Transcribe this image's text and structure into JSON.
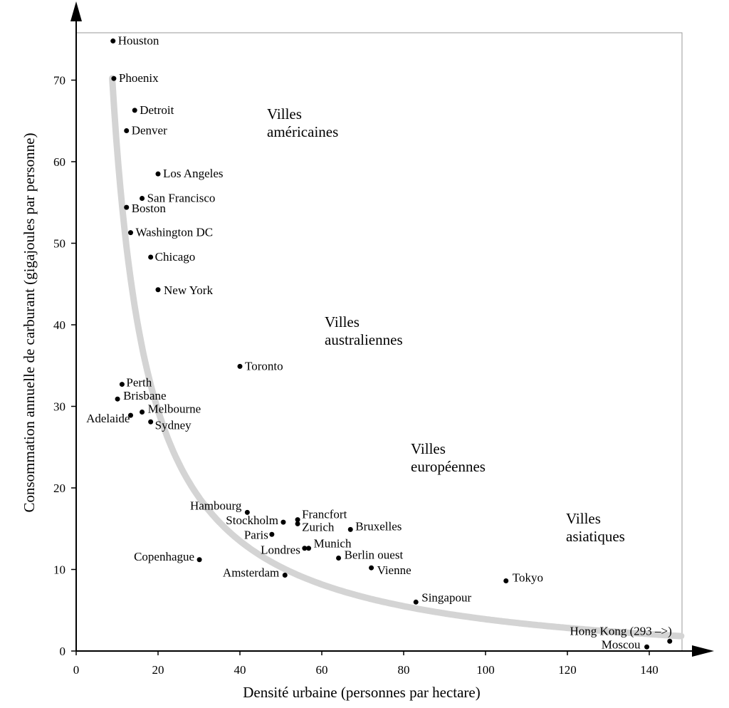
{
  "chart_data": {
    "type": "scatter",
    "title": "",
    "xlabel": "Densité urbaine (personnes par hectare)",
    "ylabel": "Consommation annuelle de carburant (gigajoules  par personne)",
    "xlim": [
      0,
      148
    ],
    "ylim": [
      0,
      76
    ],
    "xticks": [
      0,
      20,
      40,
      60,
      80,
      100,
      120,
      140
    ],
    "yticks": [
      0,
      10,
      20,
      30,
      40,
      50,
      60,
      70
    ],
    "grid": false,
    "curve_color": "#d4d4d4",
    "point_color": "#000000",
    "points": [
      {
        "name": "Houston",
        "x": 9,
        "y": 74.8
      },
      {
        "name": "Phoenix",
        "x": 9.2,
        "y": 70.2
      },
      {
        "name": "Detroit",
        "x": 14.3,
        "y": 66.3
      },
      {
        "name": "Denver",
        "x": 12.3,
        "y": 63.8
      },
      {
        "name": "Los Angeles",
        "x": 20,
        "y": 58.5
      },
      {
        "name": "San Francisco",
        "x": 16.1,
        "y": 55.5
      },
      {
        "name": "Boston",
        "x": 12.3,
        "y": 54.4
      },
      {
        "name": "Washington DC",
        "x": 13.3,
        "y": 51.3
      },
      {
        "name": "Chicago",
        "x": 18.2,
        "y": 48.3
      },
      {
        "name": "New York",
        "x": 20,
        "y": 44.3
      },
      {
        "name": "Toronto",
        "x": 40,
        "y": 34.9
      },
      {
        "name": "Perth",
        "x": 11.2,
        "y": 32.7
      },
      {
        "name": "Brisbane",
        "x": 10.1,
        "y": 30.9
      },
      {
        "name": "Melbourne",
        "x": 16.1,
        "y": 29.3
      },
      {
        "name": "Adelaide",
        "x": 13.3,
        "y": 28.9
      },
      {
        "name": "Sydney",
        "x": 18.2,
        "y": 28.1
      },
      {
        "name": "Hambourg",
        "x": 41.8,
        "y": 17
      },
      {
        "name": "Francfort",
        "x": 54.1,
        "y": 16.1
      },
      {
        "name": "Stockholm",
        "x": 50.6,
        "y": 15.8
      },
      {
        "name": "Zurich",
        "x": 54.1,
        "y": 15.6
      },
      {
        "name": "Bruxelles",
        "x": 67,
        "y": 14.9
      },
      {
        "name": "Paris",
        "x": 47.8,
        "y": 14.3
      },
      {
        "name": "Munich",
        "x": 56.8,
        "y": 12.6
      },
      {
        "name": "Londres",
        "x": 55.8,
        "y": 12.6
      },
      {
        "name": "Berlin ouest",
        "x": 64.1,
        "y": 11.4
      },
      {
        "name": "Copenhague",
        "x": 30.1,
        "y": 11.2
      },
      {
        "name": "Vienne",
        "x": 72.1,
        "y": 10.2
      },
      {
        "name": "Amsterdam",
        "x": 51,
        "y": 9.3
      },
      {
        "name": "Tokyo",
        "x": 105,
        "y": 8.6
      },
      {
        "name": "Singapour",
        "x": 83,
        "y": 6
      },
      {
        "name": "Hong Kong (293 –>)",
        "x": 145,
        "y": 1.2
      },
      {
        "name": "Moscou",
        "x": 139.4,
        "y": 0.5
      }
    ],
    "groups": [
      {
        "line1": "Villes",
        "line2": "américaines"
      },
      {
        "line1": "Villes",
        "line2": "australiennes"
      },
      {
        "line1": "Villes",
        "line2": "européennes"
      },
      {
        "line1": "Villes",
        "line2": "asiatiques"
      }
    ]
  }
}
